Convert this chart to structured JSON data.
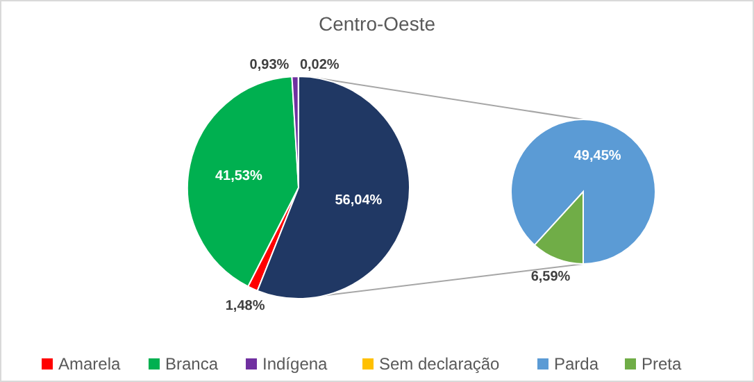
{
  "chart_data": [
    {
      "type": "pie",
      "title": "Centro-Oeste",
      "categories": [
        "Amarela",
        "Branca",
        "Indígena",
        "Sem declaração",
        null
      ],
      "values": [
        1.48,
        41.53,
        0.93,
        0.02,
        56.04
      ],
      "colors": [
        "#ff0000",
        "#00b050",
        "#7030a0",
        "#ffc000",
        "#203864"
      ],
      "value_labels": [
        "1,48%",
        "41,53%",
        "0,93%",
        "0,02%",
        "56,04%"
      ],
      "legend": "bottom"
    },
    {
      "type": "pie",
      "categories": [
        "Parda",
        "Preta"
      ],
      "values": [
        49.45,
        6.59
      ],
      "colors": [
        "#5b9bd5",
        "#70ad47"
      ],
      "value_labels": [
        "49,45%",
        "6,59%"
      ],
      "legend": "bottom"
    }
  ]
}
